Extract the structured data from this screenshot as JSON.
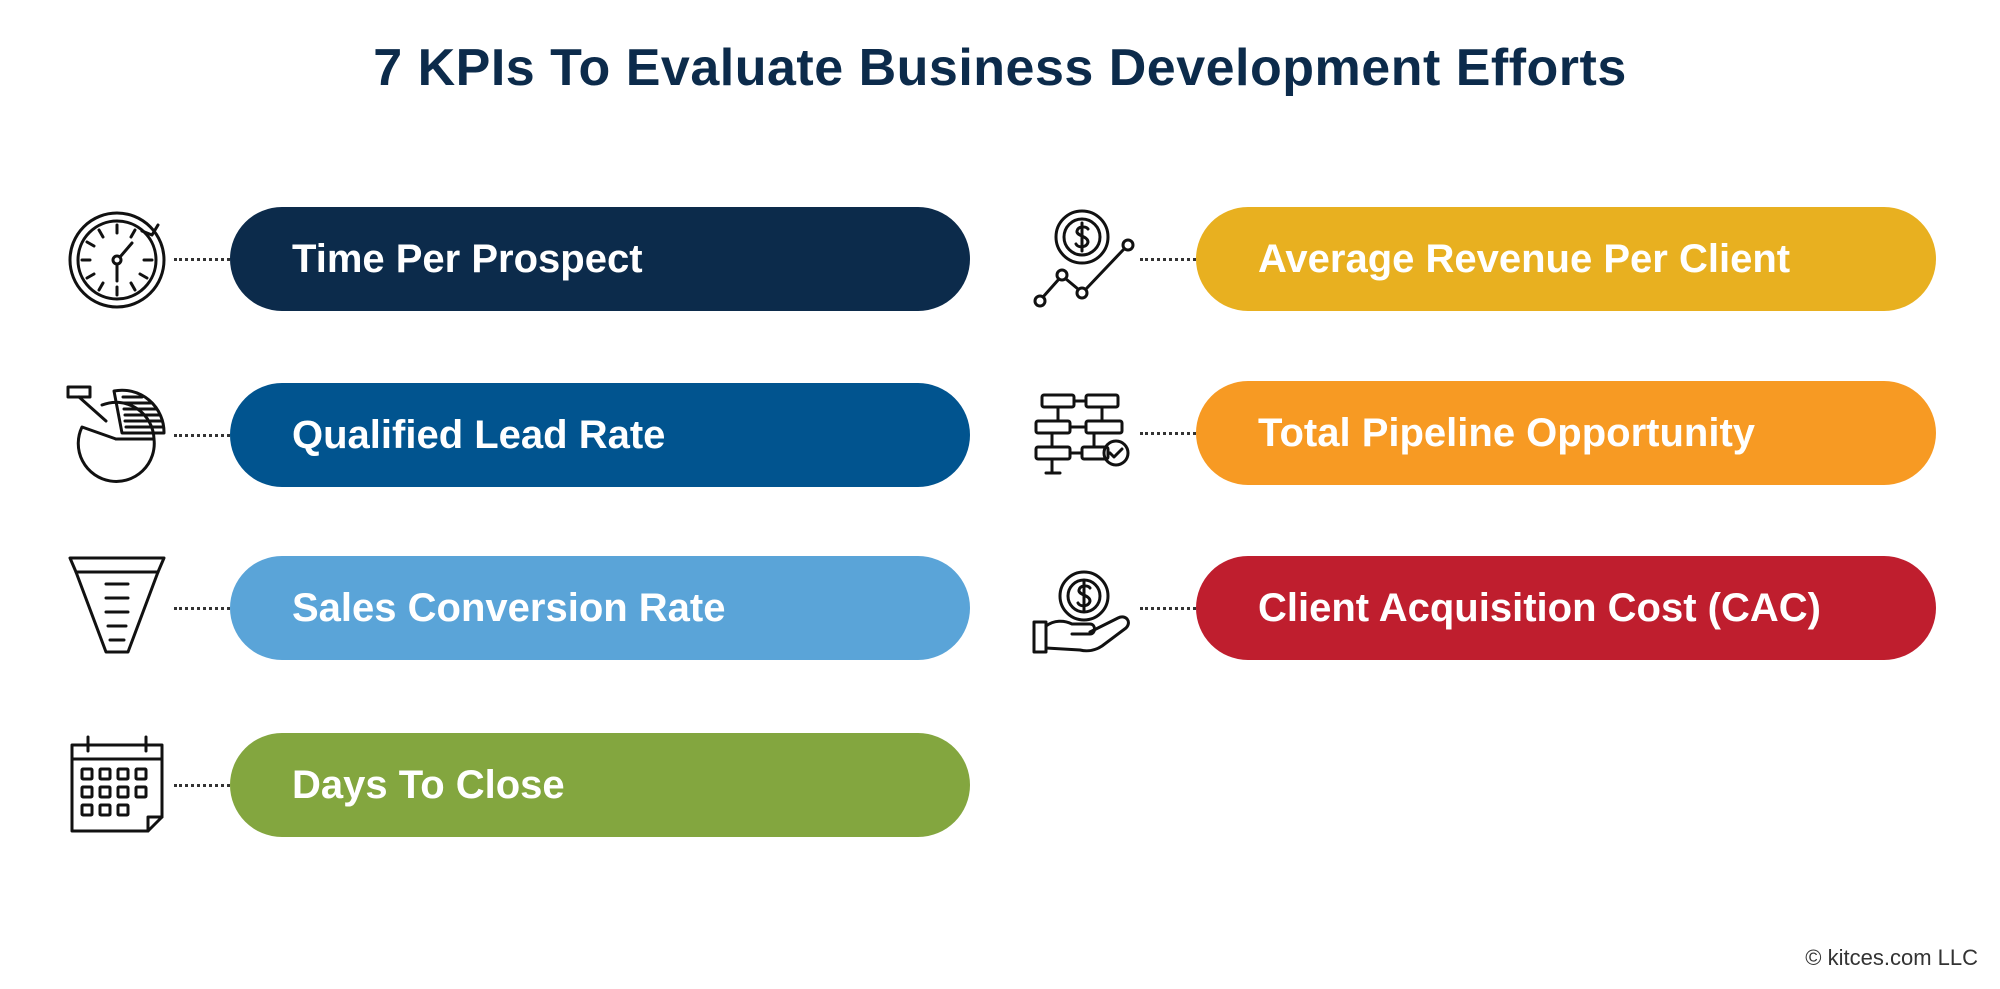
{
  "title": "7 KPIs To Evaluate Business Development Efforts",
  "kpis": [
    {
      "label": "Time Per Prospect",
      "color": "#0c2b4b",
      "icon": "stopwatch-icon"
    },
    {
      "label": "Qualified Lead Rate",
      "color": "#01548f",
      "icon": "pie-chart-icon"
    },
    {
      "label": "Sales Conversion Rate",
      "color": "#5aa4d8",
      "icon": "funnel-icon"
    },
    {
      "label": "Days To Close",
      "color": "#83a63f",
      "icon": "calendar-icon"
    },
    {
      "label": "Average Revenue Per Client",
      "color": "#e8b020",
      "icon": "revenue-growth-icon"
    },
    {
      "label": "Total Pipeline Opportunity",
      "color": "#f79a23",
      "icon": "pipeline-flowchart-icon"
    },
    {
      "label": "Client Acquisition Cost (CAC)",
      "color": "#bf1e2e",
      "icon": "hand-coin-icon"
    }
  ],
  "copyright": "© kitces.com LLC"
}
